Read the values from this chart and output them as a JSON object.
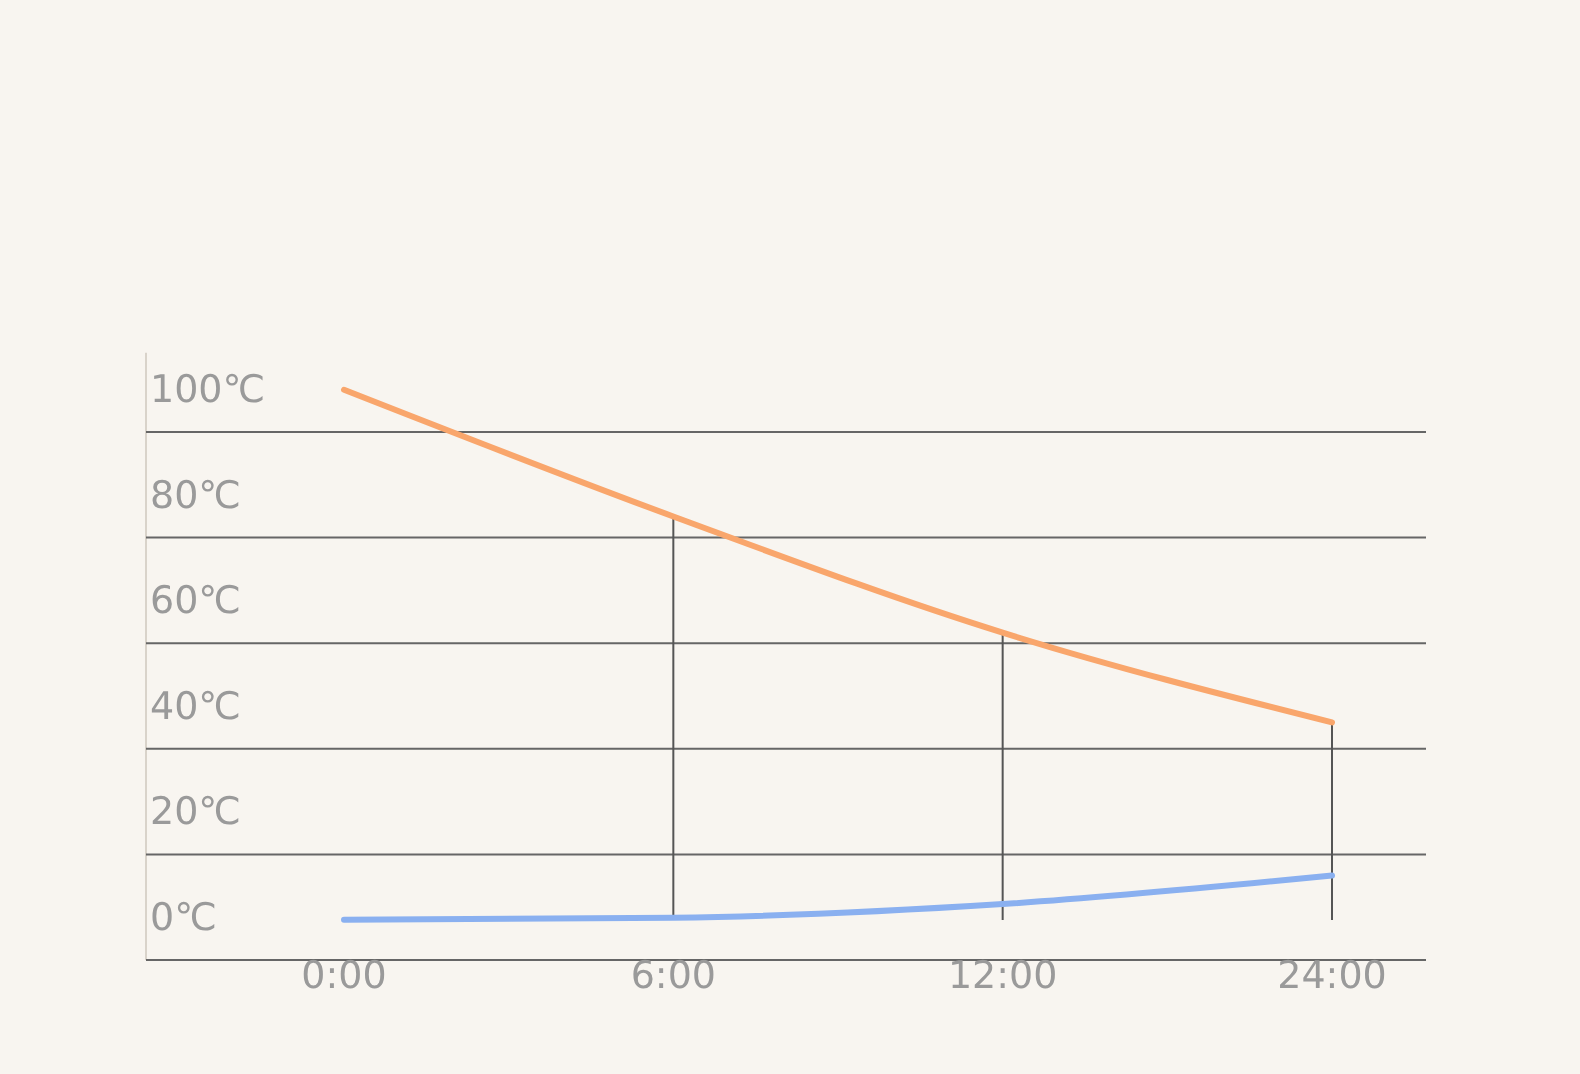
{
  "chart_data": {
    "type": "line",
    "categories": [
      "0:00",
      "6:00",
      "12:00",
      "24:00"
    ],
    "ylim": [
      0,
      115
    ],
    "yticks": [
      {
        "value": 0,
        "label": "0℃"
      },
      {
        "value": 20,
        "label": "20℃"
      },
      {
        "value": 40,
        "label": "40℃"
      },
      {
        "value": 60,
        "label": "60℃"
      },
      {
        "value": 80,
        "label": "80℃"
      },
      {
        "value": 100,
        "label": "100℃"
      }
    ],
    "grid": "y",
    "series": [
      {
        "color": "#f9a66c",
        "values": [
          108,
          84,
          62,
          45
        ]
      },
      {
        "color": "#8ab0f0",
        "values": [
          7.6,
          8,
          10.6,
          16
        ]
      }
    ],
    "ref_lines": [
      {
        "axis": "x",
        "value": "6:00",
        "color": "#555555"
      },
      {
        "axis": "x",
        "value": "12:00",
        "color": "#555555"
      },
      {
        "axis": "x",
        "value": "24:00",
        "color": "#555555"
      }
    ]
  }
}
